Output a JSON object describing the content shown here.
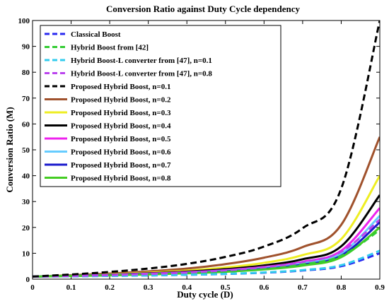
{
  "chart_data": {
    "type": "line",
    "title": "Conversion Ratio against Duty Cycle dependency",
    "xlabel": "Duty cycle (D)",
    "ylabel": "Conversion Ratio (M)",
    "xlim": [
      0,
      0.9
    ],
    "ylim": [
      0,
      100
    ],
    "xticks": [
      "0",
      "0.1",
      "0.2",
      "0.3",
      "0.4",
      "0.5",
      "0.6",
      "0.7",
      "0.8",
      "0.9"
    ],
    "yticks": [
      "0",
      "10",
      "20",
      "30",
      "40",
      "50",
      "60",
      "70",
      "80",
      "90",
      "100"
    ],
    "grid": false,
    "legend_position": "top-left",
    "x": [
      0,
      0.1,
      0.2,
      0.3,
      0.4,
      0.5,
      0.6,
      0.7,
      0.8,
      0.9
    ],
    "series": [
      {
        "name": "Classical Boost",
        "color": "#2a2af0",
        "dashed": true,
        "values": [
          1,
          1.11,
          1.25,
          1.43,
          1.67,
          2.0,
          2.5,
          3.33,
          5.0,
          10.0
        ]
      },
      {
        "name": "Hybrid Boost from [42]",
        "color": "#33cc33",
        "dashed": true,
        "values": [
          1,
          1.22,
          1.5,
          1.86,
          2.33,
          3.0,
          4.0,
          5.67,
          9.0,
          19.0
        ]
      },
      {
        "name": "Hybrid Boost-L converter from [47], n=0.1",
        "color": "#33ccee",
        "dashed": true,
        "values": [
          1,
          1.12,
          1.26,
          1.45,
          1.7,
          2.05,
          2.6,
          3.5,
          5.4,
          11.0
        ]
      },
      {
        "name": "Hybrid Boost-L converter from [47], n=0.8",
        "color": "#bb44ee",
        "dashed": true,
        "values": [
          1,
          1.26,
          1.58,
          2.0,
          2.56,
          3.4,
          4.6,
          6.6,
          10.6,
          23.0
        ]
      },
      {
        "name": "Proposed Hybrid Boost, n=0.1",
        "color": "#000000",
        "dashed": true,
        "values": [
          1,
          1.8,
          2.8,
          4.1,
          5.9,
          8.6,
          12.6,
          19.7,
          35.0,
          100.0
        ]
      },
      {
        "name": "Proposed Hybrid Boost, n=0.2",
        "color": "#a0522d",
        "dashed": false,
        "values": [
          1,
          1.55,
          2.2,
          3.0,
          4.1,
          5.8,
          8.3,
          12.4,
          21.0,
          55.0
        ]
      },
      {
        "name": "Proposed Hybrid Boost, n=0.3",
        "color": "#eeee22",
        "dashed": false,
        "values": [
          1,
          1.42,
          1.9,
          2.5,
          3.3,
          4.5,
          6.3,
          9.3,
          15.5,
          40.0
        ]
      },
      {
        "name": "Proposed Hybrid Boost, n=0.4",
        "color": "#000000",
        "dashed": false,
        "values": [
          1,
          1.35,
          1.75,
          2.25,
          2.9,
          3.85,
          5.3,
          7.7,
          12.7,
          32.5
        ]
      },
      {
        "name": "Proposed Hybrid Boost, n=0.5",
        "color": "#ee22ee",
        "dashed": false,
        "values": [
          1,
          1.3,
          1.65,
          2.1,
          2.65,
          3.45,
          4.7,
          6.7,
          11.0,
          27.5
        ]
      },
      {
        "name": "Proposed Hybrid Boost, n=0.6",
        "color": "#66ccff",
        "dashed": false,
        "values": [
          1,
          1.27,
          1.58,
          1.98,
          2.48,
          3.2,
          4.3,
          6.1,
          9.9,
          24.5
        ]
      },
      {
        "name": "Proposed Hybrid Boost, n=0.7",
        "color": "#1a1acc",
        "dashed": false,
        "values": [
          1,
          1.24,
          1.52,
          1.9,
          2.35,
          3.0,
          4.0,
          5.6,
          9.1,
          22.0
        ]
      },
      {
        "name": "Proposed Hybrid Boost, n=0.8",
        "color": "#44cc22",
        "dashed": false,
        "values": [
          1,
          1.22,
          1.48,
          1.82,
          2.25,
          2.85,
          3.75,
          5.25,
          8.5,
          20.0
        ]
      }
    ]
  }
}
